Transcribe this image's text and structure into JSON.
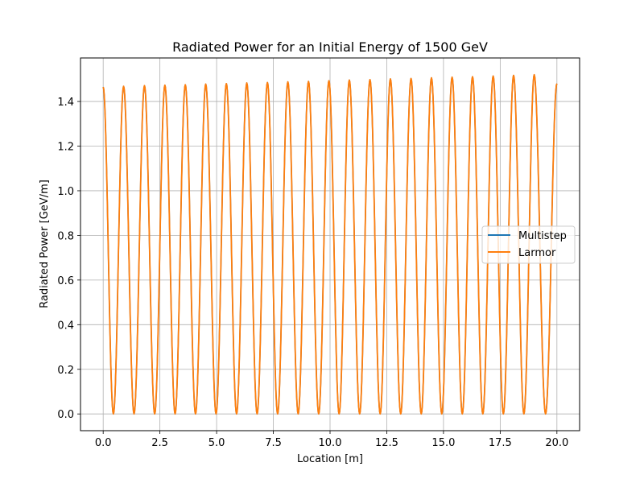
{
  "chart_data": {
    "type": "line",
    "title": "Radiated Power for an Initial Energy of 1500 GeV",
    "xlabel": "Location [m]",
    "ylabel": "Radiated Power [GeV/m]",
    "xlim": [
      -1.0,
      21.0
    ],
    "ylim": [
      -0.075,
      1.595
    ],
    "xticks": [
      0,
      2.5,
      5,
      7.5,
      10,
      12.5,
      15,
      17.5,
      20
    ],
    "xtick_labels": [
      "0.0",
      "2.5",
      "5.0",
      "7.5",
      "10.0",
      "12.5",
      "15.0",
      "17.5",
      "20.0"
    ],
    "yticks": [
      0,
      0.2,
      0.4,
      0.6,
      0.8,
      1.0,
      1.2,
      1.4
    ],
    "ytick_labels": [
      "0.0",
      "0.2",
      "0.4",
      "0.6",
      "0.8",
      "1.0",
      "1.2",
      "1.4"
    ],
    "grid": true,
    "legend_position": "center-right",
    "x": [
      0.0,
      0.9,
      1.8,
      2.7,
      3.6,
      4.5,
      5.4,
      6.3,
      7.2,
      8.1,
      9.0,
      9.9,
      10.8,
      11.7,
      12.6,
      13.5,
      14.4,
      15.3,
      16.2,
      17.1,
      18.0,
      18.9,
      19.8,
      20.0
    ],
    "peak_x": [
      0.0,
      0.9,
      1.82,
      2.72,
      3.62,
      4.52,
      5.43,
      6.33,
      7.24,
      8.14,
      9.05,
      9.95,
      10.85,
      11.76,
      12.66,
      13.57,
      14.47,
      15.38,
      16.28,
      17.19,
      18.09,
      19.0,
      20.0
    ],
    "peak_y": [
      1.465,
      1.468,
      1.471,
      1.473,
      1.475,
      1.478,
      1.48,
      1.483,
      1.485,
      1.488,
      1.49,
      1.493,
      1.496,
      1.498,
      1.501,
      1.503,
      1.506,
      1.509,
      1.511,
      1.514,
      1.517,
      1.52,
      1.48
    ],
    "trough_y": 0.0,
    "series": [
      {
        "name": "Multistep",
        "color": "#1f77b4"
      },
      {
        "name": "Larmor",
        "color": "#ff7f0e"
      }
    ]
  }
}
